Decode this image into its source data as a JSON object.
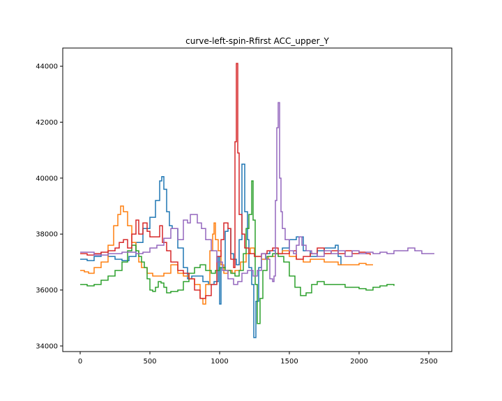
{
  "chart_data": {
    "type": "line",
    "title": "curve-left-spin-Rfirst ACC_upper_Y",
    "xlabel": "",
    "ylabel": "",
    "xlim": [
      -125,
      2665
    ],
    "ylim": [
      33800,
      44650
    ],
    "x_ticks": [
      0,
      500,
      1000,
      1500,
      2000,
      2500
    ],
    "y_ticks": [
      34000,
      36000,
      38000,
      40000,
      42000,
      44000
    ],
    "grid": false,
    "legend": "none",
    "series": [
      {
        "color": "#1f77b4",
        "points": [
          [
            0,
            37100
          ],
          [
            50,
            37050
          ],
          [
            100,
            37200
          ],
          [
            150,
            37350
          ],
          [
            200,
            37200
          ],
          [
            250,
            37100
          ],
          [
            300,
            37050
          ],
          [
            350,
            37200
          ],
          [
            400,
            37700
          ],
          [
            450,
            38200
          ],
          [
            500,
            38600
          ],
          [
            540,
            39200
          ],
          [
            570,
            39900
          ],
          [
            585,
            40050
          ],
          [
            600,
            39600
          ],
          [
            620,
            38800
          ],
          [
            640,
            38300
          ],
          [
            660,
            38200
          ],
          [
            700,
            37500
          ],
          [
            740,
            36800
          ],
          [
            770,
            36400
          ],
          [
            800,
            36500
          ],
          [
            840,
            36500
          ],
          [
            880,
            36300
          ],
          [
            920,
            36200
          ],
          [
            960,
            36300
          ],
          [
            990,
            37200
          ],
          [
            1000,
            35500
          ],
          [
            1010,
            36800
          ],
          [
            1040,
            38100
          ],
          [
            1060,
            38200
          ],
          [
            1080,
            37300
          ],
          [
            1100,
            37100
          ],
          [
            1120,
            36900
          ],
          [
            1140,
            37800
          ],
          [
            1160,
            40500
          ],
          [
            1180,
            38800
          ],
          [
            1200,
            37800
          ],
          [
            1210,
            36800
          ],
          [
            1230,
            36200
          ],
          [
            1245,
            34300
          ],
          [
            1260,
            35600
          ],
          [
            1280,
            36800
          ],
          [
            1300,
            37100
          ],
          [
            1330,
            37300
          ],
          [
            1360,
            37400
          ],
          [
            1400,
            37300
          ],
          [
            1450,
            37500
          ],
          [
            1500,
            37800
          ],
          [
            1550,
            37900
          ],
          [
            1600,
            37400
          ],
          [
            1650,
            37200
          ],
          [
            1700,
            37400
          ],
          [
            1750,
            37500
          ],
          [
            1800,
            37500
          ],
          [
            1830,
            37600
          ],
          [
            1850,
            37200
          ],
          [
            1870,
            36900
          ]
        ]
      },
      {
        "color": "#ff7f0e",
        "points": [
          [
            0,
            36700
          ],
          [
            30,
            36650
          ],
          [
            60,
            36600
          ],
          [
            100,
            36800
          ],
          [
            150,
            37000
          ],
          [
            200,
            37600
          ],
          [
            240,
            38300
          ],
          [
            270,
            38700
          ],
          [
            290,
            39000
          ],
          [
            310,
            38800
          ],
          [
            340,
            38300
          ],
          [
            370,
            37700
          ],
          [
            400,
            37400
          ],
          [
            420,
            37000
          ],
          [
            440,
            36800
          ],
          [
            480,
            36600
          ],
          [
            520,
            36500
          ],
          [
            560,
            36500
          ],
          [
            600,
            36600
          ],
          [
            650,
            36900
          ],
          [
            700,
            36600
          ],
          [
            740,
            36500
          ],
          [
            780,
            36400
          ],
          [
            820,
            36200
          ],
          [
            860,
            35700
          ],
          [
            880,
            35500
          ],
          [
            900,
            36200
          ],
          [
            930,
            37400
          ],
          [
            950,
            38000
          ],
          [
            960,
            38400
          ],
          [
            970,
            37800
          ],
          [
            990,
            37400
          ],
          [
            1010,
            36900
          ],
          [
            1030,
            36600
          ],
          [
            1060,
            36700
          ],
          [
            1090,
            36600
          ],
          [
            1110,
            36700
          ],
          [
            1150,
            37000
          ],
          [
            1190,
            37300
          ],
          [
            1220,
            37500
          ],
          [
            1250,
            37200
          ],
          [
            1300,
            37100
          ],
          [
            1350,
            37200
          ],
          [
            1400,
            37300
          ],
          [
            1450,
            37400
          ],
          [
            1500,
            37200
          ],
          [
            1550,
            37100
          ],
          [
            1600,
            37000
          ],
          [
            1650,
            37100
          ],
          [
            1700,
            37100
          ],
          [
            1750,
            37000
          ],
          [
            1800,
            37000
          ],
          [
            1850,
            36900
          ],
          [
            1900,
            36900
          ],
          [
            1950,
            36900
          ],
          [
            2000,
            36950
          ],
          [
            2050,
            36900
          ],
          [
            2100,
            36900
          ]
        ]
      },
      {
        "color": "#2ca02c",
        "points": [
          [
            0,
            36200
          ],
          [
            50,
            36150
          ],
          [
            100,
            36200
          ],
          [
            150,
            36350
          ],
          [
            200,
            36500
          ],
          [
            250,
            36700
          ],
          [
            300,
            37000
          ],
          [
            340,
            37400
          ],
          [
            370,
            37600
          ],
          [
            400,
            37400
          ],
          [
            420,
            37200
          ],
          [
            440,
            37000
          ],
          [
            460,
            36800
          ],
          [
            480,
            36400
          ],
          [
            500,
            36000
          ],
          [
            520,
            35950
          ],
          [
            540,
            36100
          ],
          [
            560,
            36300
          ],
          [
            580,
            36250
          ],
          [
            600,
            36100
          ],
          [
            620,
            35900
          ],
          [
            650,
            35950
          ],
          [
            700,
            36000
          ],
          [
            740,
            36300
          ],
          [
            780,
            36600
          ],
          [
            820,
            36800
          ],
          [
            860,
            36900
          ],
          [
            900,
            36700
          ],
          [
            940,
            36600
          ],
          [
            970,
            36700
          ],
          [
            1000,
            36800
          ],
          [
            1040,
            36700
          ],
          [
            1080,
            36600
          ],
          [
            1110,
            36500
          ],
          [
            1140,
            36700
          ],
          [
            1170,
            37300
          ],
          [
            1190,
            38200
          ],
          [
            1210,
            38700
          ],
          [
            1230,
            39900
          ],
          [
            1240,
            38500
          ],
          [
            1255,
            36200
          ],
          [
            1270,
            34800
          ],
          [
            1290,
            35700
          ],
          [
            1310,
            36700
          ],
          [
            1340,
            37200
          ],
          [
            1380,
            37300
          ],
          [
            1420,
            37200
          ],
          [
            1460,
            37000
          ],
          [
            1500,
            36500
          ],
          [
            1540,
            36100
          ],
          [
            1580,
            35800
          ],
          [
            1620,
            35900
          ],
          [
            1660,
            36200
          ],
          [
            1700,
            36300
          ],
          [
            1750,
            36200
          ],
          [
            1800,
            36200
          ],
          [
            1850,
            36200
          ],
          [
            1900,
            36100
          ],
          [
            1950,
            36100
          ],
          [
            2000,
            36050
          ],
          [
            2050,
            36000
          ],
          [
            2100,
            36100
          ],
          [
            2150,
            36150
          ],
          [
            2200,
            36200
          ],
          [
            2250,
            36150
          ]
        ]
      },
      {
        "color": "#d62728",
        "points": [
          [
            0,
            37300
          ],
          [
            50,
            37250
          ],
          [
            100,
            37300
          ],
          [
            150,
            37350
          ],
          [
            200,
            37400
          ],
          [
            250,
            37500
          ],
          [
            280,
            37700
          ],
          [
            310,
            37800
          ],
          [
            340,
            37500
          ],
          [
            370,
            38000
          ],
          [
            400,
            38500
          ],
          [
            420,
            38000
          ],
          [
            450,
            38400
          ],
          [
            480,
            38100
          ],
          [
            500,
            37900
          ],
          [
            540,
            37900
          ],
          [
            570,
            38300
          ],
          [
            590,
            37700
          ],
          [
            620,
            37400
          ],
          [
            650,
            37000
          ],
          [
            700,
            36700
          ],
          [
            740,
            36600
          ],
          [
            780,
            36400
          ],
          [
            820,
            36000
          ],
          [
            860,
            35700
          ],
          [
            900,
            35800
          ],
          [
            940,
            36200
          ],
          [
            980,
            37200
          ],
          [
            1010,
            37800
          ],
          [
            1030,
            38400
          ],
          [
            1060,
            38200
          ],
          [
            1080,
            37100
          ],
          [
            1100,
            36800
          ],
          [
            1110,
            41300
          ],
          [
            1120,
            44100
          ],
          [
            1130,
            40900
          ],
          [
            1140,
            38700
          ],
          [
            1160,
            38000
          ],
          [
            1180,
            37500
          ],
          [
            1210,
            37300
          ],
          [
            1250,
            37200
          ],
          [
            1300,
            37300
          ],
          [
            1340,
            37400
          ],
          [
            1380,
            37500
          ],
          [
            1420,
            37300
          ],
          [
            1460,
            37300
          ],
          [
            1500,
            37400
          ],
          [
            1550,
            37100
          ],
          [
            1600,
            37200
          ],
          [
            1650,
            37300
          ],
          [
            1700,
            37500
          ],
          [
            1750,
            37300
          ],
          [
            1800,
            37400
          ],
          [
            1850,
            37300
          ],
          [
            1900,
            37400
          ],
          [
            1950,
            37300
          ],
          [
            2000,
            37350
          ],
          [
            2050,
            37300
          ],
          [
            2080,
            37250
          ]
        ]
      },
      {
        "color": "#9467bd",
        "points": [
          [
            0,
            37350
          ],
          [
            100,
            37250
          ],
          [
            200,
            37300
          ],
          [
            300,
            37350
          ],
          [
            400,
            37300
          ],
          [
            450,
            37350
          ],
          [
            500,
            37500
          ],
          [
            550,
            37600
          ],
          [
            600,
            37850
          ],
          [
            650,
            38200
          ],
          [
            700,
            37800
          ],
          [
            740,
            38500
          ],
          [
            770,
            38400
          ],
          [
            790,
            38700
          ],
          [
            810,
            38700
          ],
          [
            840,
            38400
          ],
          [
            870,
            38200
          ],
          [
            900,
            37800
          ],
          [
            940,
            37400
          ],
          [
            980,
            37000
          ],
          [
            1020,
            36700
          ],
          [
            1060,
            36400
          ],
          [
            1100,
            36200
          ],
          [
            1130,
            36300
          ],
          [
            1160,
            36600
          ],
          [
            1200,
            36700
          ],
          [
            1240,
            36500
          ],
          [
            1270,
            36700
          ],
          [
            1300,
            37300
          ],
          [
            1330,
            37100
          ],
          [
            1360,
            36400
          ],
          [
            1380,
            36300
          ],
          [
            1390,
            36500
          ],
          [
            1400,
            39200
          ],
          [
            1410,
            41800
          ],
          [
            1420,
            42700
          ],
          [
            1430,
            40000
          ],
          [
            1440,
            38800
          ],
          [
            1450,
            38200
          ],
          [
            1470,
            37800
          ],
          [
            1500,
            37400
          ],
          [
            1530,
            37300
          ],
          [
            1550,
            37600
          ],
          [
            1570,
            37900
          ],
          [
            1590,
            37600
          ],
          [
            1620,
            37400
          ],
          [
            1660,
            37300
          ],
          [
            1700,
            37200
          ],
          [
            1750,
            37400
          ],
          [
            1800,
            37300
          ],
          [
            1850,
            37400
          ],
          [
            1900,
            37200
          ],
          [
            1950,
            37400
          ],
          [
            2000,
            37300
          ],
          [
            2050,
            37350
          ],
          [
            2100,
            37300
          ],
          [
            2150,
            37350
          ],
          [
            2200,
            37300
          ],
          [
            2250,
            37400
          ],
          [
            2300,
            37400
          ],
          [
            2350,
            37500
          ],
          [
            2400,
            37400
          ],
          [
            2450,
            37300
          ],
          [
            2500,
            37300
          ],
          [
            2540,
            37300
          ]
        ]
      }
    ]
  }
}
